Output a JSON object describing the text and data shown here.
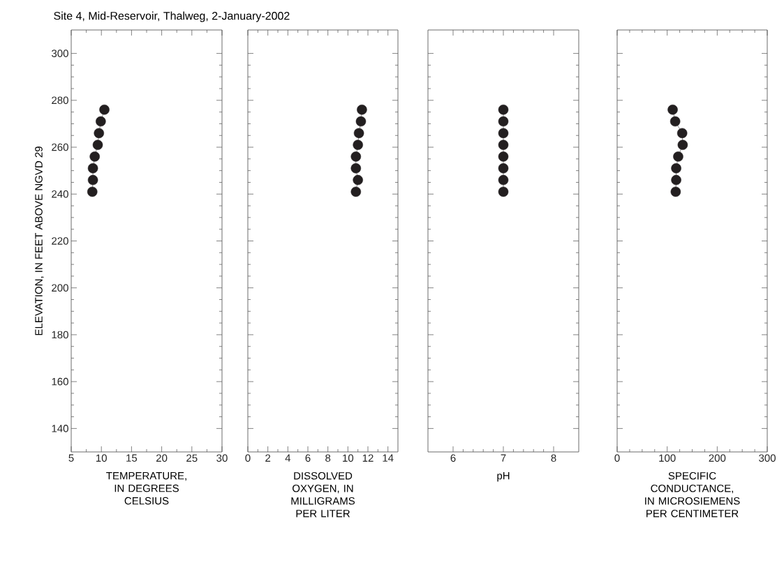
{
  "chart_data": [
    {
      "type": "line",
      "title": "Site 4, Mid-Reservoir, Thalweg, 2-January-2002",
      "xlabel": "TEMPERATURE, IN DEGREES CELSIUS",
      "ylabel": "ELEVATION, IN FEET ABOVE NGVD 29",
      "x": [
        10.5,
        9.9,
        9.6,
        9.4,
        8.9,
        8.6,
        8.6,
        8.5
      ],
      "values": [
        276,
        271,
        266,
        261,
        256,
        251,
        246,
        241
      ],
      "color": "#231f20",
      "marker": "circle",
      "xlim": [
        5,
        30
      ],
      "xticks": [
        5,
        10,
        15,
        20,
        25,
        30
      ],
      "ylim": [
        130,
        310
      ],
      "yticks": [
        140,
        160,
        180,
        200,
        220,
        240,
        260,
        280,
        300
      ]
    },
    {
      "type": "line",
      "xlabel": "DISSOLVED OXYGEN, IN MILLIGRAMS PER LITER",
      "x": [
        11.4,
        11.3,
        11.1,
        11.0,
        10.8,
        10.8,
        11.0,
        10.8
      ],
      "values": [
        276,
        271,
        266,
        261,
        256,
        251,
        246,
        241
      ],
      "color": "#231f20",
      "marker": "circle",
      "xlim": [
        0,
        15
      ],
      "xticks": [
        0,
        2,
        4,
        6,
        8,
        10,
        12,
        14
      ],
      "ylim": [
        130,
        310
      ],
      "yticks": [
        140,
        160,
        180,
        200,
        220,
        240,
        260,
        280,
        300
      ],
      "tick_labels": "x"
    },
    {
      "type": "line",
      "xlabel": "pH",
      "x": [
        7.0,
        7.0,
        7.0,
        7.0,
        7.0,
        7.0,
        7.0,
        7.0
      ],
      "values": [
        276,
        271,
        266,
        261,
        256,
        251,
        246,
        241
      ],
      "color": "#231f20",
      "marker": "circle",
      "xlim": [
        5.5,
        8.5
      ],
      "xticks": [
        6,
        7,
        8
      ],
      "ylim": [
        130,
        310
      ],
      "yticks": [
        140,
        160,
        180,
        200,
        220,
        240,
        260,
        280,
        300
      ],
      "tick_labels": "x"
    },
    {
      "type": "line",
      "xlabel": "SPECIFIC CONDUCTANCE, IN MICROSIEMENS PER CENTIMETER",
      "x": [
        111,
        116,
        130,
        131,
        122,
        118,
        118,
        117
      ],
      "values": [
        276,
        271,
        266,
        261,
        256,
        251,
        246,
        241
      ],
      "color": "#231f20",
      "marker": "circle",
      "xlim": [
        0,
        300
      ],
      "xticks": [
        0,
        100,
        200,
        300
      ],
      "ylim": [
        130,
        310
      ],
      "yticks": [
        140,
        160,
        180,
        200,
        220,
        240,
        260,
        280,
        300
      ],
      "tick_labels": "x"
    }
  ]
}
